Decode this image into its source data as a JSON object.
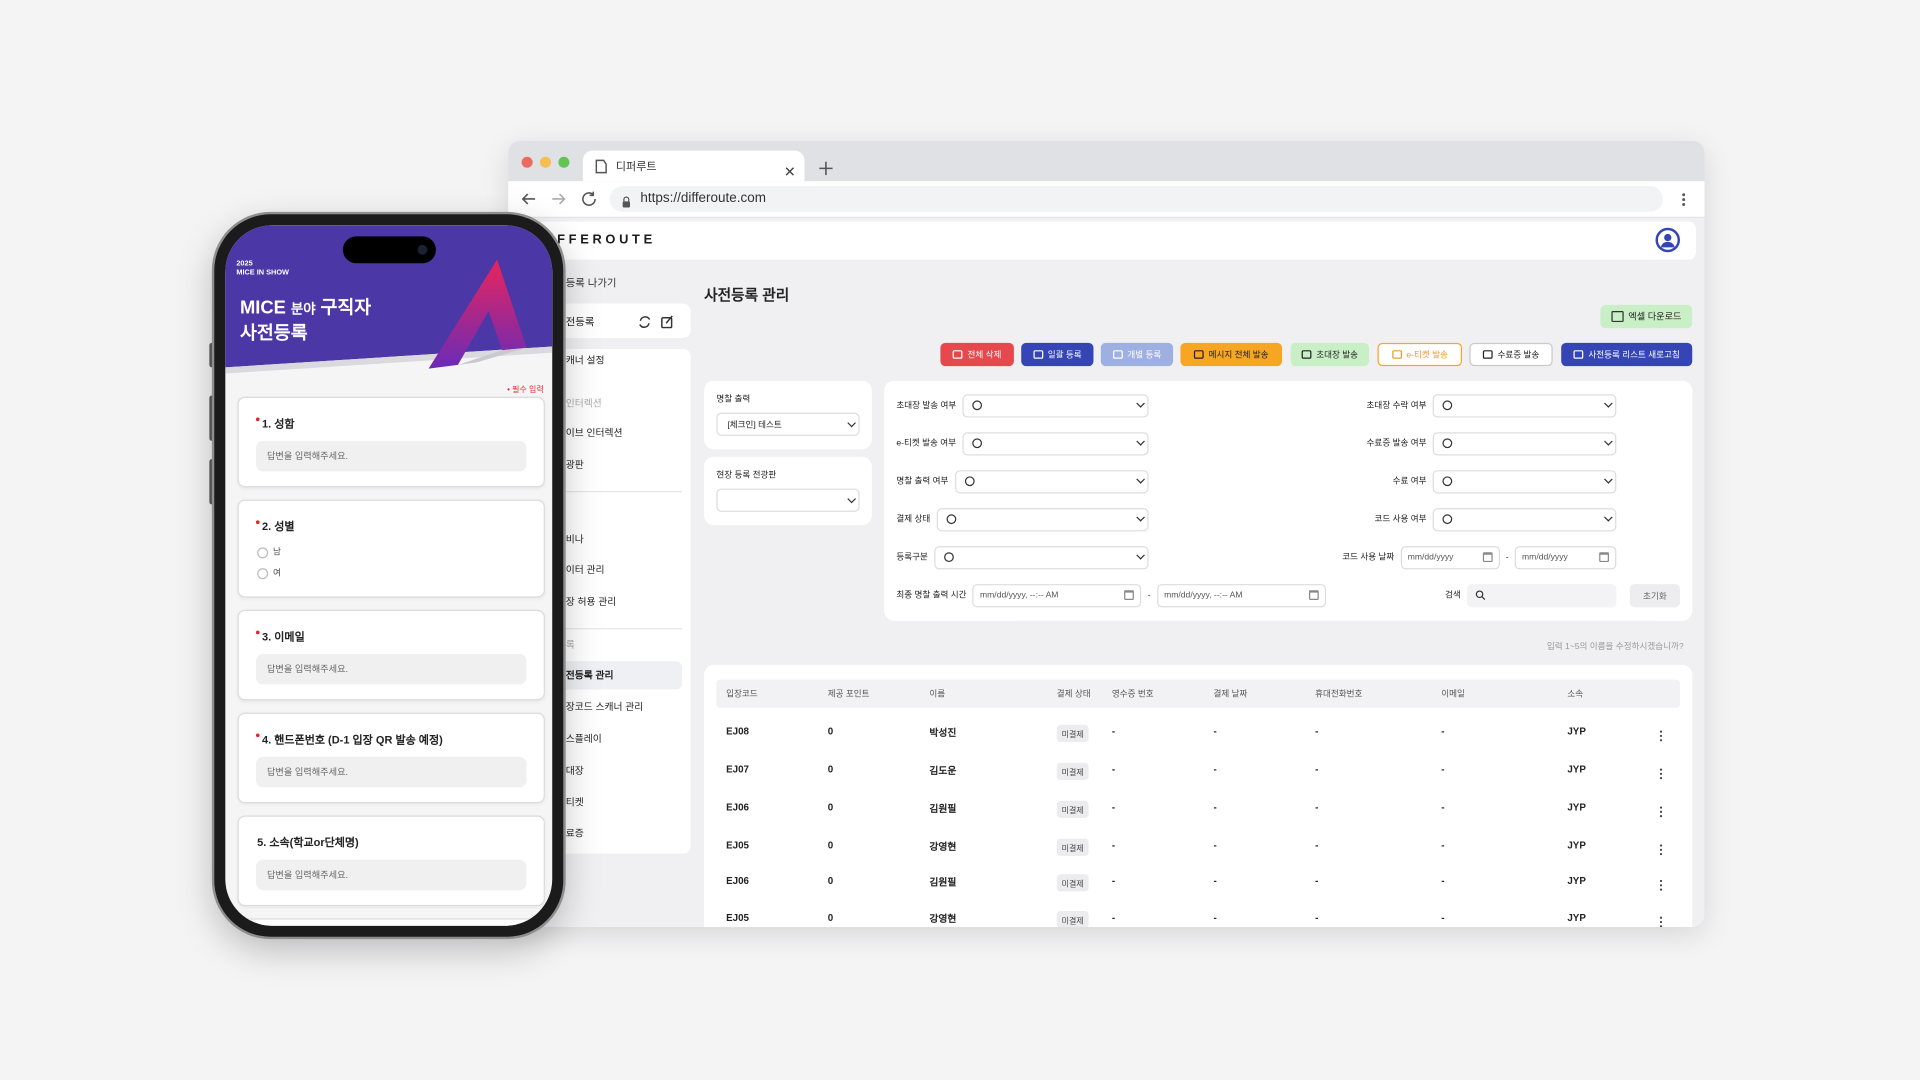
{
  "browser": {
    "tab_title": "디퍼루트",
    "url": "https://differoute.com"
  },
  "header": {
    "logo": "FFEROUTE"
  },
  "sidebar": {
    "back": "등록 나가기",
    "current": "전등록",
    "items": [
      {
        "label": "캐너 설정"
      },
      {
        "label": "인터렉션",
        "section": true
      },
      {
        "label": "이브 인터렉션"
      },
      {
        "label": "광판"
      },
      {
        "label": "비나"
      },
      {
        "label": "이터 관리"
      },
      {
        "label": "장 허용 관리"
      },
      {
        "label": "록",
        "section": true
      },
      {
        "label": "전등록 관리",
        "active": true
      },
      {
        "label": "장코드 스캐너 관리"
      },
      {
        "label": "스플레이"
      },
      {
        "label": "대장"
      },
      {
        "label": "티켓"
      },
      {
        "label": "료증"
      }
    ]
  },
  "main": {
    "title": "사전등록 관리",
    "excel_button": "엑셀 다운로드",
    "actions": [
      "전체 삭제",
      "일괄 등록",
      "개별 등록",
      "메시지 전체 발송",
      "초대장 발송",
      "e-티켓 발송",
      "수료증 발송",
      "사전등록 리스트 새로고침"
    ],
    "badge_filter": {
      "label": "명찰 출력",
      "value": "[체크인] 테스트"
    },
    "board_filter": {
      "label": "현장 등록 전광판"
    },
    "filters_left": [
      "초대장 발송 여부",
      "e-티켓 발송 여부",
      "명찰 출력 여부",
      "결제 상태",
      "등록구분"
    ],
    "print_time": {
      "label": "최종 명찰 출력 시간",
      "placeholder": "mm/dd/yyyy, --:-- AM"
    },
    "filters_right": [
      "초대장 수락 여부",
      "수료증 발송 여부",
      "수료 여부",
      "코드 사용 여부"
    ],
    "code_date": {
      "label": "코드 사용 날짜",
      "placeholder": "mm/dd/yyyy"
    },
    "range_separator": "-",
    "search": {
      "label": "검색"
    },
    "reset": "초기화",
    "hint": "입력 1~5의 이름을 수정하시겠습니까?"
  },
  "table": {
    "columns": [
      "입장코드",
      "제공 포인트",
      "이름",
      "결제 상태",
      "영수증 번호",
      "결제 날짜",
      "휴대전화번호",
      "이메일",
      "소속"
    ],
    "rows": [
      [
        "EJ08",
        0,
        "박성진",
        "미결제",
        "-",
        "-",
        "-",
        "-",
        "JYP"
      ],
      [
        "EJ07",
        0,
        "김도운",
        "미결제",
        "-",
        "-",
        "-",
        "-",
        "JYP"
      ],
      [
        "EJ06",
        0,
        "김원필",
        "미결제",
        "-",
        "-",
        "-",
        "-",
        "JYP"
      ],
      [
        "EJ05",
        0,
        "강영현",
        "미결제",
        "-",
        "-",
        "-",
        "-",
        "JYP"
      ],
      [
        "EJ06",
        0,
        "김원필",
        "미결제",
        "-",
        "-",
        "-",
        "-",
        "JYP"
      ],
      [
        "EJ05",
        0,
        "강영현",
        "미결제",
        "-",
        "-",
        "-",
        "-",
        "JYP"
      ]
    ]
  },
  "phone": {
    "year": "2025",
    "event": "MICE IN SHOW",
    "title_main": "MICE",
    "title_small": "분야",
    "title_rest": "구직자",
    "title_line2": "사전등록",
    "required_note": "• 필수 입력",
    "questions": [
      {
        "title": "1. 성함",
        "required": true,
        "placeholder": "답변을 입력해주세요."
      },
      {
        "title": "2. 성별",
        "required": true,
        "options": [
          "남",
          "여"
        ]
      },
      {
        "title": "3. 이메일",
        "required": true,
        "placeholder": "답변을 입력해주세요."
      },
      {
        "title": "4. 핸드폰번호 (D-1 입장 QR 발송 예정)",
        "required": true,
        "placeholder": "답변을 입력해주세요."
      },
      {
        "title": "5. 소속(학교or단체명)",
        "required": false,
        "placeholder": "답변을 입력해주세요."
      }
    ]
  }
}
